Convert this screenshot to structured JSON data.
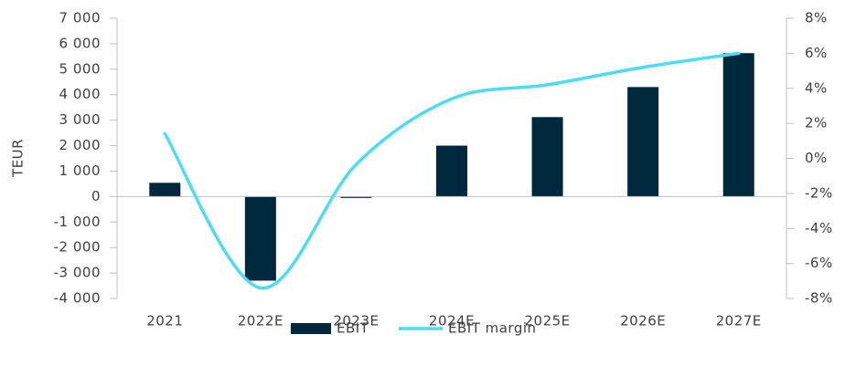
{
  "chart_data": {
    "type": "bar_line",
    "y_axis_label": "TEUR",
    "categories": [
      "2021",
      "2022E",
      "2023E",
      "2024E",
      "2025E",
      "2026E",
      "2027E"
    ],
    "series": [
      {
        "name": "EBIT",
        "type": "bar",
        "color": "#00283c",
        "values": [
          540,
          -3300,
          -50,
          2000,
          3120,
          4300,
          5630
        ]
      },
      {
        "name": "EBIT margin",
        "type": "line",
        "axis": "y2",
        "color": "#4cdcf5",
        "values": [
          1.4,
          -7.4,
          -0.35,
          3.4,
          4.2,
          5.2,
          6.0
        ]
      }
    ],
    "ylim": [
      -4000,
      7000
    ],
    "yticks": [
      {
        "value": -4000,
        "label": "-4 000"
      },
      {
        "value": -3000,
        "label": "-3 000"
      },
      {
        "value": -2000,
        "label": "-2 000"
      },
      {
        "value": -1000,
        "label": "-1 000"
      },
      0,
      {
        "value": 1000,
        "label": "1 000"
      },
      {
        "value": 2000,
        "label": "2 000"
      },
      {
        "value": 3000,
        "label": "3 000"
      },
      {
        "value": 4000,
        "label": "4 000"
      },
      {
        "value": 5000,
        "label": "5 000"
      },
      {
        "value": 6000,
        "label": "6 000"
      },
      {
        "value": 7000,
        "label": "7 000"
      }
    ],
    "y2lim": [
      -8,
      8
    ],
    "y2ticks": [
      {
        "value": -8,
        "label": "-8%"
      },
      {
        "value": -6,
        "label": "-6%"
      },
      {
        "value": -4,
        "label": "-4%"
      },
      {
        "value": -2,
        "label": "-2%"
      },
      {
        "value": 0,
        "label": "0%"
      },
      {
        "value": 2,
        "label": "2%"
      },
      {
        "value": 4,
        "label": "4%"
      },
      {
        "value": 6,
        "label": "6%"
      },
      {
        "value": 8,
        "label": "8%"
      }
    ],
    "legend": "bottom"
  }
}
